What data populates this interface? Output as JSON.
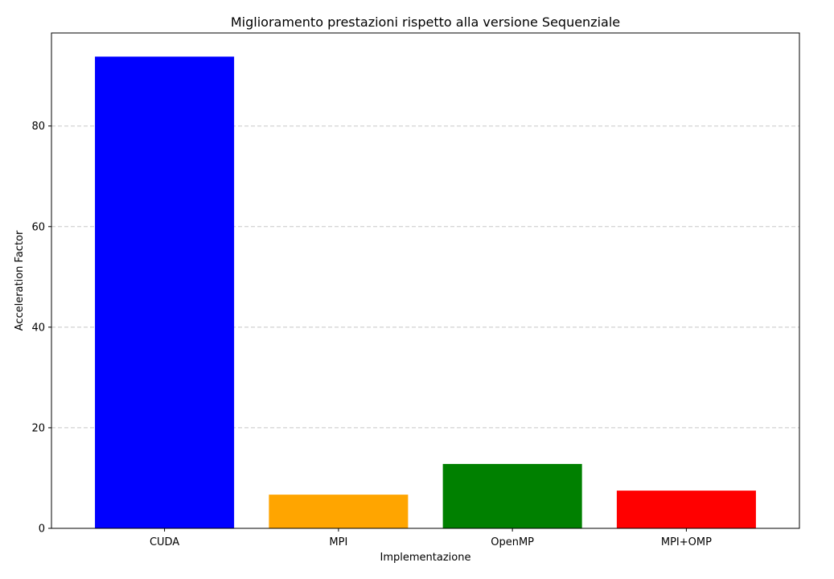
{
  "chart_data": {
    "type": "bar",
    "title": "Miglioramento prestazioni rispetto alla versione Sequenziale",
    "xlabel": "Implementazione",
    "ylabel": "Acceleration Factor",
    "categories": [
      "CUDA",
      "MPI",
      "OpenMP",
      "MPI+OMP"
    ],
    "values": [
      93.8,
      6.7,
      12.8,
      7.5
    ],
    "colors": [
      "#0000ff",
      "#ffa500",
      "#008000",
      "#ff0000"
    ],
    "ylim": [
      0,
      98.5
    ],
    "yticks": [
      0,
      20,
      40,
      60,
      80
    ],
    "grid": "y-dashed",
    "legend": "none"
  }
}
